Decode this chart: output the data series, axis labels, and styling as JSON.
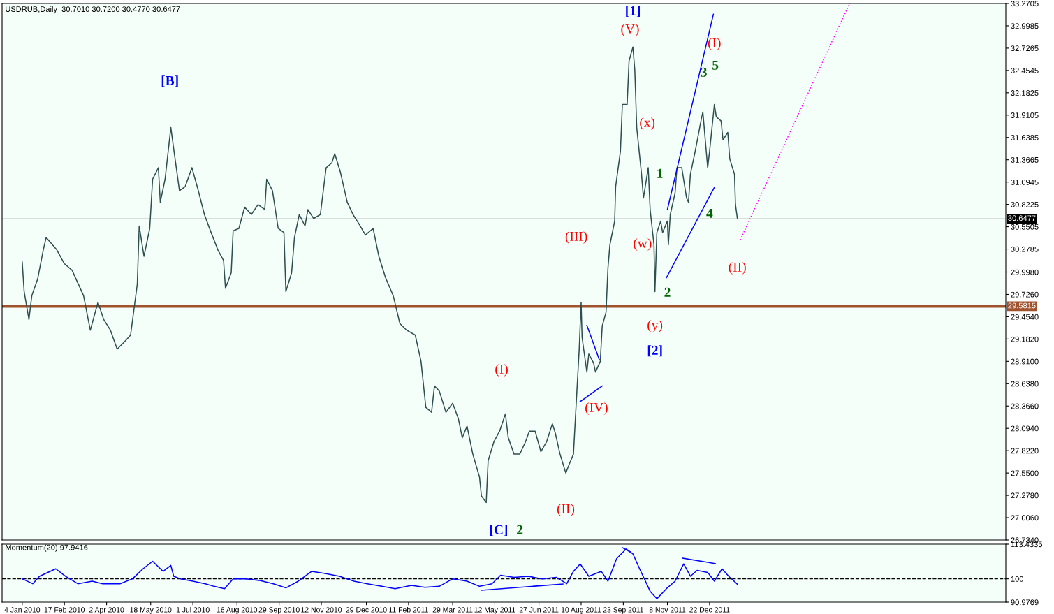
{
  "chart_data": [
    {
      "type": "line",
      "title": "USDRUB,Daily  30.7010 30.7200 30.4770 30.6477",
      "tick_labels": "y",
      "xlim": [
        "2009-12-14",
        "2012-10-26"
      ],
      "ylim": [
        26.734,
        33.2705
      ],
      "yticks": [
        {
          "value": 33.2705,
          "label": "33.2705"
        },
        {
          "value": 32.9985,
          "label": "32.9985"
        },
        {
          "value": 32.7265,
          "label": "32.7265"
        },
        {
          "value": 32.4545,
          "label": "32.4545"
        },
        {
          "value": 32.1825,
          "label": "32.1825"
        },
        {
          "value": 31.9105,
          "label": "31.9105"
        },
        {
          "value": 31.6385,
          "label": "31.6385"
        },
        {
          "value": 31.3665,
          "label": "31.3665"
        },
        {
          "value": 31.0945,
          "label": "31.0945"
        },
        {
          "value": 30.8225,
          "label": "30.8225"
        },
        {
          "value": 30.5505,
          "label": "30.5505"
        },
        {
          "value": 30.2785,
          "label": "30.2785"
        },
        {
          "value": 29.998,
          "label": "29.9980"
        },
        {
          "value": 29.726,
          "label": "29.7260"
        },
        {
          "value": 29.454,
          "label": "29.4540"
        },
        {
          "value": 29.182,
          "label": "29.1820"
        },
        {
          "value": 28.91,
          "label": "28.9100"
        },
        {
          "value": 28.638,
          "label": "28.6380"
        },
        {
          "value": 28.366,
          "label": "28.3660"
        },
        {
          "value": 28.094,
          "label": "28.0940"
        },
        {
          "value": 27.822,
          "label": "27.8220"
        },
        {
          "value": 27.55,
          "label": "27.5500"
        },
        {
          "value": 27.278,
          "label": "27.2780"
        },
        {
          "value": 27.006,
          "label": "27.0060"
        },
        {
          "value": 26.734,
          "label": "26.7340"
        }
      ],
      "ref_lines": [
        {
          "axis": "y",
          "value": 30.6477,
          "label": "30.6477",
          "color": "#c0c0c0",
          "line_style": "solid"
        },
        {
          "axis": "y",
          "value": 29.5815,
          "label": "29.5815",
          "color": "#a0522d",
          "line_style": "solid"
        }
      ],
      "series": [
        {
          "color": "#2f4f4f",
          "line_style": "solid",
          "x": [
            "2010-01-04",
            "2010-01-06",
            "2010-01-11",
            "2010-01-14",
            "2010-01-20",
            "2010-01-26",
            "2010-01-29",
            "2010-02-09",
            "2010-02-17",
            "2010-02-25",
            "2010-03-09",
            "2010-03-16",
            "2010-03-24",
            "2010-03-30",
            "2010-04-06",
            "2010-04-13",
            "2010-04-20",
            "2010-04-27",
            "2010-05-04",
            "2010-05-06",
            "2010-05-11",
            "2010-05-17",
            "2010-05-20",
            "2010-05-26",
            "2010-05-28",
            "2010-06-02",
            "2010-06-08",
            "2010-06-11",
            "2010-06-17",
            "2010-06-23",
            "2010-06-30",
            "2010-07-06",
            "2010-07-13",
            "2010-07-20",
            "2010-07-27",
            "2010-08-02",
            "2010-08-04",
            "2010-08-10",
            "2010-08-12",
            "2010-08-18",
            "2010-08-24",
            "2010-08-31",
            "2010-09-07",
            "2010-09-14",
            "2010-09-16",
            "2010-09-22",
            "2010-09-28",
            "2010-10-04",
            "2010-10-06",
            "2010-10-12",
            "2010-10-15",
            "2010-10-20",
            "2010-10-26",
            "2010-10-29",
            "2010-11-04",
            "2010-11-11",
            "2010-11-17",
            "2010-11-23",
            "2010-11-26",
            "2010-12-02",
            "2010-12-09",
            "2010-12-15",
            "2010-12-21",
            "2010-12-28",
            "2011-01-05",
            "2011-01-11",
            "2011-01-18",
            "2011-01-26",
            "2011-02-02",
            "2011-02-09",
            "2011-02-18",
            "2011-02-24",
            "2011-03-01",
            "2011-03-07",
            "2011-03-10",
            "2011-03-15",
            "2011-03-22",
            "2011-03-29",
            "2011-04-04",
            "2011-04-08",
            "2011-04-13",
            "2011-04-19",
            "2011-04-26",
            "2011-04-28",
            "2011-05-03",
            "2011-05-05",
            "2011-05-11",
            "2011-05-17",
            "2011-05-23",
            "2011-05-26",
            "2011-06-01",
            "2011-06-07",
            "2011-06-13",
            "2011-06-17",
            "2011-06-23",
            "2011-06-29",
            "2011-07-05",
            "2011-07-11",
            "2011-07-14",
            "2011-07-19",
            "2011-07-25",
            "2011-07-28",
            "2011-08-02",
            "2011-08-04",
            "2011-08-08",
            "2011-08-10",
            "2011-08-11",
            "2011-08-16",
            "2011-08-18",
            "2011-08-23",
            "2011-08-25",
            "2011-08-30",
            "2011-09-01",
            "2011-09-05",
            "2011-09-07",
            "2011-09-09",
            "2011-09-14",
            "2011-09-15",
            "2011-09-20",
            "2011-09-22",
            "2011-09-27",
            "2011-09-29",
            "2011-10-03",
            "2011-10-05",
            "2011-10-07",
            "2011-10-12",
            "2011-10-14",
            "2011-10-19",
            "2011-10-21",
            "2011-10-25",
            "2011-10-26",
            "2011-10-28",
            "2011-11-01",
            "2011-11-03",
            "2011-11-08",
            "2011-11-09",
            "2011-11-11",
            "2011-11-16",
            "2011-11-18",
            "2011-11-23",
            "2011-11-28",
            "2011-11-30",
            "2011-12-02",
            "2011-12-07",
            "2011-12-13",
            "2011-12-15",
            "2011-12-20",
            "2011-12-22",
            "2011-12-27",
            "2011-12-29",
            "2012-01-03",
            "2012-01-05",
            "2012-01-10",
            "2012-01-12",
            "2012-01-17",
            "2012-01-18",
            "2012-01-20"
          ],
          "values": [
            30.12,
            29.76,
            29.42,
            29.71,
            29.91,
            30.27,
            30.42,
            30.27,
            30.1,
            30.02,
            29.71,
            29.29,
            29.63,
            29.42,
            29.29,
            29.06,
            29.14,
            29.23,
            29.85,
            30.56,
            30.19,
            30.53,
            31.13,
            31.27,
            30.85,
            31.13,
            31.76,
            31.5,
            30.99,
            31.04,
            31.27,
            31.02,
            30.7,
            30.48,
            30.27,
            30.14,
            29.8,
            29.99,
            30.5,
            30.53,
            30.79,
            30.7,
            30.82,
            30.76,
            31.13,
            30.99,
            30.53,
            30.48,
            29.76,
            29.99,
            30.42,
            30.7,
            30.56,
            30.76,
            30.65,
            30.7,
            31.27,
            31.33,
            31.44,
            31.21,
            30.85,
            30.7,
            30.59,
            30.45,
            30.53,
            30.19,
            29.93,
            29.71,
            29.37,
            29.29,
            29.23,
            28.91,
            28.35,
            28.29,
            28.61,
            28.55,
            28.29,
            28.4,
            28.21,
            27.98,
            28.12,
            27.78,
            27.5,
            27.27,
            27.19,
            27.7,
            27.93,
            28.06,
            28.27,
            27.98,
            27.78,
            27.78,
            27.93,
            28.06,
            28.06,
            27.81,
            27.93,
            28.15,
            28.04,
            27.78,
            27.55,
            27.64,
            27.78,
            28.21,
            29.06,
            29.63,
            29.2,
            28.78,
            29.0,
            28.89,
            28.78,
            28.91,
            29.34,
            29.51,
            30.05,
            30.33,
            30.62,
            31.04,
            31.47,
            32.04,
            32.04,
            32.57,
            32.74,
            32.46,
            31.76,
            31.19,
            30.9,
            31.27,
            30.76,
            30.33,
            29.76,
            30.48,
            30.62,
            30.48,
            30.62,
            30.33,
            30.7,
            30.96,
            31.27,
            31.27,
            30.9,
            30.85,
            31.19,
            31.47,
            31.84,
            31.95,
            31.27,
            31.47,
            32.04,
            31.89,
            31.84,
            31.61,
            31.7,
            31.38,
            31.19,
            30.82,
            30.65
          ]
        },
        {
          "color": "#0000ff",
          "line_style": "solid",
          "x": [
            "2011-11-08",
            "2011-12-26"
          ],
          "values": [
            30.76,
            33.14
          ]
        },
        {
          "color": "#0000ff",
          "line_style": "solid",
          "x": [
            "2011-11-07",
            "2011-12-27"
          ],
          "values": [
            29.93,
            31.03
          ]
        },
        {
          "color": "#0000ff",
          "line_style": "solid",
          "x": [
            "2011-08-16",
            "2011-08-29"
          ],
          "values": [
            29.35,
            28.93
          ]
        },
        {
          "color": "#0000ff",
          "line_style": "solid",
          "x": [
            "2011-08-09",
            "2011-09-01"
          ],
          "values": [
            28.42,
            28.61
          ]
        },
        {
          "color": "#ff00ff",
          "line_style": "dotted",
          "x": [
            "2012-01-23",
            "2012-05-16"
          ],
          "values": [
            30.39,
            33.27
          ]
        }
      ],
      "annotations": [
        "[B]",
        "[C]",
        "2",
        "(I)",
        "(II)",
        "(III)",
        "(IV)",
        "(V)",
        "[1]",
        "(x)",
        "(w)",
        "(y)",
        "[2]",
        "1",
        "2",
        "3",
        "5",
        "4",
        "(I)",
        "(II)"
      ]
    },
    {
      "type": "line",
      "title": "Momentum(20) 97.9416",
      "xlim": [
        "2009-12-14",
        "2012-10-26"
      ],
      "ylim": [
        90.9769,
        113.4335
      ],
      "xticks": [
        {
          "value": "2010-01-04",
          "label": "4 Jan 2010"
        },
        {
          "value": "2010-02-17",
          "label": "17 Feb 2010"
        },
        {
          "value": "2010-04-02",
          "label": "2 Apr 2010"
        },
        {
          "value": "2010-05-18",
          "label": "18 May 2010"
        },
        {
          "value": "2010-07-01",
          "label": "1 Jul 2010"
        },
        {
          "value": "2010-08-16",
          "label": "16 Aug 2010"
        },
        {
          "value": "2010-09-29",
          "label": "29 Sep 2010"
        },
        {
          "value": "2010-11-12",
          "label": "12 Nov 2010"
        },
        {
          "value": "2010-12-29",
          "label": "29 Dec 2010"
        },
        {
          "value": "2011-02-11",
          "label": "11 Feb 2011"
        },
        {
          "value": "2011-03-29",
          "label": "29 Mar 2011"
        },
        {
          "value": "2011-05-12",
          "label": "12 May 2011"
        },
        {
          "value": "2011-06-27",
          "label": "27 Jun 2011"
        },
        {
          "value": "2011-08-10",
          "label": "10 Aug 2011"
        },
        {
          "value": "2011-09-23",
          "label": "23 Sep 2011"
        },
        {
          "value": "2011-11-08",
          "label": "8 Nov 2011"
        },
        {
          "value": "2011-12-22",
          "label": "22 Dec 2011"
        }
      ],
      "yticks": [
        {
          "value": 113.4335,
          "label": "113.4335"
        },
        100,
        {
          "value": 90.9769,
          "label": "90.9769"
        }
      ],
      "ref_lines": [
        {
          "axis": "y",
          "value": 100,
          "color": "#000000",
          "line_style": "dashed"
        }
      ],
      "series": [
        {
          "color": "#0000ff",
          "line_style": "solid",
          "x": [
            "2010-01-04",
            "2010-01-15",
            "2010-01-22",
            "2010-02-08",
            "2010-02-18",
            "2010-03-03",
            "2010-03-18",
            "2010-03-29",
            "2010-04-16",
            "2010-04-29",
            "2010-05-10",
            "2010-05-20",
            "2010-05-31",
            "2010-06-08",
            "2010-06-11",
            "2010-06-18",
            "2010-07-01",
            "2010-07-14",
            "2010-07-23",
            "2010-08-03",
            "2010-08-12",
            "2010-08-25",
            "2010-09-08",
            "2010-09-23",
            "2010-10-06",
            "2010-10-19",
            "2010-11-02",
            "2010-11-17",
            "2010-12-01",
            "2010-12-16",
            "2010-12-30",
            "2011-01-14",
            "2011-01-28",
            "2011-02-14",
            "2011-02-28",
            "2011-03-15",
            "2011-03-29",
            "2011-04-13",
            "2011-04-26",
            "2011-05-09",
            "2011-05-18",
            "2011-06-01",
            "2011-06-16",
            "2011-06-30",
            "2011-07-15",
            "2011-07-26",
            "2011-08-02",
            "2011-08-09",
            "2011-08-18",
            "2011-08-31",
            "2011-09-07",
            "2011-09-16",
            "2011-09-26",
            "2011-10-03",
            "2011-10-10",
            "2011-10-21",
            "2011-10-28",
            "2011-11-07",
            "2011-11-16",
            "2011-11-25",
            "2011-12-02",
            "2011-12-09",
            "2011-12-20",
            "2011-12-27",
            "2012-01-04",
            "2012-01-11",
            "2012-01-20"
          ],
          "values": [
            100.0,
            98.1,
            101.0,
            103.9,
            101.0,
            98.1,
            99.1,
            98.1,
            98.1,
            100.0,
            103.9,
            106.8,
            102.9,
            105.2,
            101.0,
            100.0,
            99.1,
            98.1,
            97.1,
            96.2,
            100.0,
            100.0,
            99.4,
            98.1,
            96.5,
            99.1,
            102.9,
            102.0,
            101.0,
            99.1,
            98.1,
            97.1,
            96.2,
            97.5,
            96.7,
            97.1,
            100.0,
            99.1,
            97.1,
            98.1,
            101.4,
            100.6,
            101.0,
            100.0,
            100.6,
            98.1,
            102.9,
            105.8,
            101.0,
            102.9,
            99.1,
            107.8,
            111.6,
            109.7,
            103.9,
            95.2,
            92.3,
            96.2,
            99.1,
            105.8,
            101.0,
            103.3,
            102.5,
            99.1,
            103.9,
            101.0,
            97.9
          ]
        },
        {
          "color": "#0000ff",
          "line_style": "solid",
          "x": [
            "2011-04-28",
            "2011-07-22"
          ],
          "values": [
            95.6,
            98.0
          ]
        },
        {
          "color": "#0000ff",
          "line_style": "solid",
          "x": [
            "2011-09-22",
            "2011-09-30"
          ],
          "values": [
            112.1,
            110.5
          ]
        },
        {
          "color": "#0000ff",
          "line_style": "solid",
          "x": [
            "2011-11-24",
            "2011-12-28"
          ],
          "values": [
            108.0,
            105.9
          ]
        }
      ]
    }
  ]
}
